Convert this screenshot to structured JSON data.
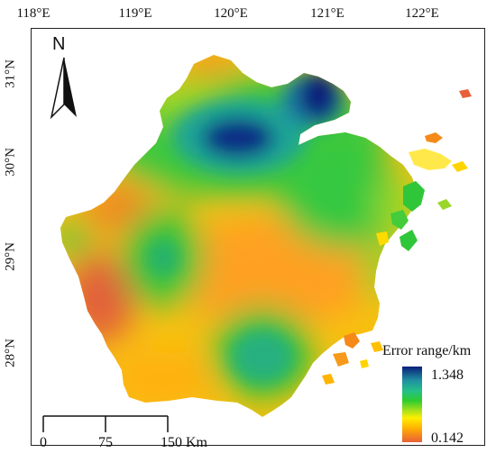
{
  "map": {
    "lon_labels": [
      "118°E",
      "119°E",
      "120°E",
      "121°E",
      "122°E"
    ],
    "lat_labels": [
      "31°N",
      "30°N",
      "29°N",
      "28°N"
    ],
    "north_arrow": {
      "letter": "N",
      "icon": "north-arrow-icon"
    },
    "legend": {
      "title": "Error range/km",
      "max_label": "1.348",
      "min_label": "0.142",
      "max_value": 1.348,
      "min_value": 0.142,
      "gradient_colors": [
        "#0b1f7a",
        "#1f8fa0",
        "#2ecc2e",
        "#ffef00",
        "#e8603a"
      ]
    },
    "scalebar": {
      "labels": [
        "0",
        "75",
        "150 Km"
      ],
      "unit": "Km"
    }
  }
}
